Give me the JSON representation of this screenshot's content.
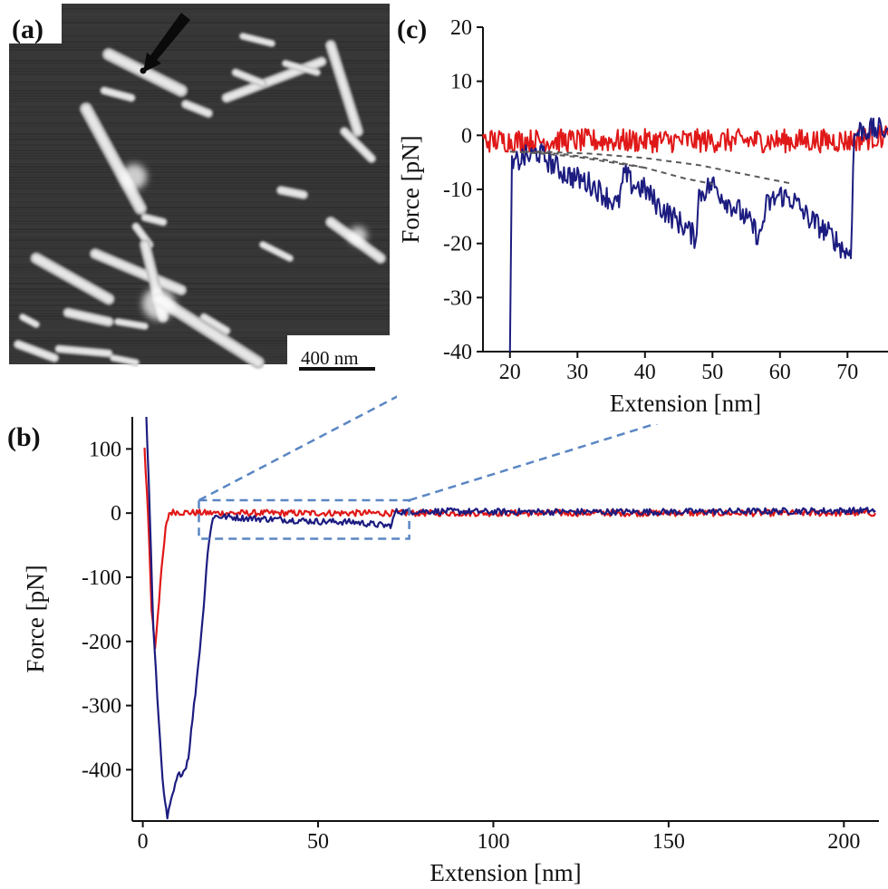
{
  "panels": {
    "a": {
      "label": "(a)",
      "scale_bar": "400 nm"
    },
    "b": {
      "label": "(b)"
    },
    "c": {
      "label": "(c)"
    }
  },
  "colors": {
    "curve1": "#e01818",
    "curve2": "#1c1c80",
    "zoom_box": "#5a86c4",
    "wlc_fit": "#5a5a5a",
    "afm_bg": "#383838",
    "afm_fiber": "#e6e6e6"
  },
  "chart_data": [
    {
      "panel": "b",
      "type": "line",
      "xlabel": "Extension [nm]",
      "ylabel": "Force [pN]",
      "xlim": [
        -3,
        210
      ],
      "ylim": [
        -480,
        150
      ],
      "xticks": [
        0,
        50,
        100,
        150,
        200
      ],
      "yticks": [
        100,
        0,
        -100,
        -200,
        -300,
        -400
      ],
      "grid": false,
      "series": [
        {
          "color": "red",
          "x": [
            0.5,
            1.5,
            2.5,
            3.5,
            5.0,
            6.5,
            7.5,
            9,
            12,
            20,
            40,
            70,
            100,
            150,
            209
          ],
          "y": [
            100,
            0,
            -150,
            -210,
            -110,
            -25,
            0,
            2,
            1,
            0,
            0,
            0,
            0,
            0,
            0
          ]
        },
        {
          "color": "blue",
          "x": [
            1,
            2,
            3,
            4.5,
            6,
            7,
            8.5,
            10,
            12,
            13,
            15,
            17,
            18.5,
            20,
            21,
            30,
            40,
            50,
            60,
            70,
            71,
            72,
            80,
            100,
            150,
            209
          ],
          "y": [
            150,
            0,
            -180,
            -320,
            -440,
            -475,
            -440,
            -410,
            -400,
            -380,
            -280,
            -170,
            -60,
            -5,
            -5,
            -8,
            -10,
            -13,
            -14,
            -20,
            -18,
            2,
            3,
            2,
            2,
            4
          ]
        }
      ]
    },
    {
      "panel": "c",
      "type": "line",
      "xlabel": "Extension [nm]",
      "ylabel": "Force [pN]",
      "xlim": [
        16,
        76
      ],
      "ylim": [
        -40,
        20
      ],
      "xticks": [
        20,
        30,
        40,
        50,
        60,
        70
      ],
      "yticks": [
        20,
        10,
        0,
        -10,
        -20,
        -30,
        -40
      ],
      "grid": false,
      "series": [
        {
          "color": "red",
          "x": [
            16,
            20,
            25,
            30,
            35,
            40,
            45,
            50,
            55,
            60,
            65,
            70,
            76
          ],
          "y": [
            -1,
            -1,
            -1,
            -1,
            -1,
            -1,
            -1,
            -1,
            -1,
            -1,
            -1,
            -1,
            0
          ]
        },
        {
          "color": "blue",
          "x": [
            20,
            20.3,
            21,
            22,
            23,
            24,
            26,
            28,
            30,
            32,
            34,
            36,
            37,
            38,
            40,
            42,
            44,
            46,
            47.5,
            48,
            50,
            52,
            54,
            56,
            57,
            58,
            60,
            62,
            64,
            66,
            68,
            70,
            70.5,
            71,
            72,
            74,
            76
          ],
          "y": [
            -40,
            -6,
            -5,
            -4,
            -4,
            -3,
            -5,
            -7,
            -8,
            -9,
            -11,
            -13,
            -7,
            -9,
            -10,
            -13,
            -15,
            -17,
            -19,
            -11,
            -9,
            -12,
            -14,
            -17,
            -19,
            -13,
            -11,
            -12,
            -15,
            -17,
            -19,
            -22,
            -21,
            0,
            1,
            1,
            1
          ]
        },
        {
          "color": "dashed-gray",
          "x": [
            20,
            25,
            30,
            35,
            40
          ],
          "y": [
            -3,
            -3.4,
            -4,
            -5,
            -6
          ]
        },
        {
          "color": "dashed-gray",
          "x": [
            22,
            28,
            34,
            40,
            46,
            50
          ],
          "y": [
            -3,
            -3.5,
            -4.5,
            -6,
            -8,
            -9
          ]
        },
        {
          "color": "dashed-gray",
          "x": [
            24,
            32,
            40,
            48,
            54,
            58,
            62
          ],
          "y": [
            -3,
            -3.4,
            -4.2,
            -5.5,
            -7,
            -8,
            -9
          ]
        }
      ]
    }
  ]
}
